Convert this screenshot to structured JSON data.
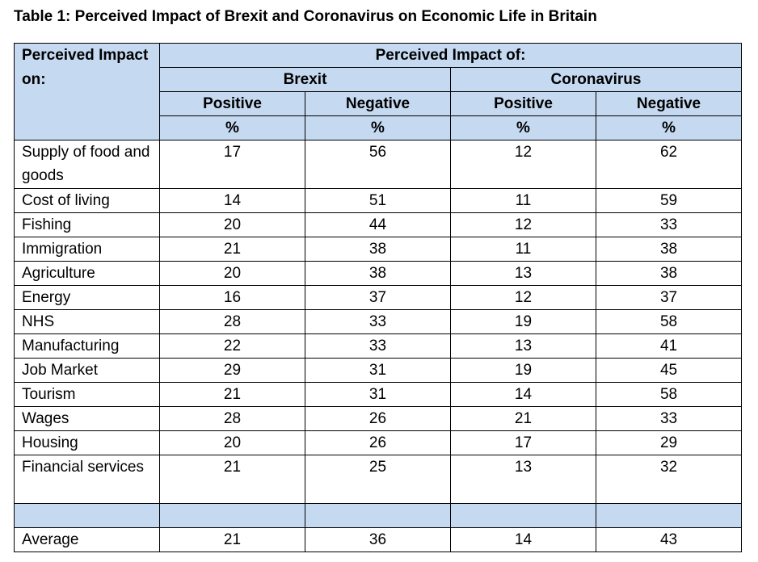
{
  "caption": "Table 1: Perceived Impact of Brexit and Coronavirus on Economic Life in Britain",
  "header": {
    "row_label": "Perceived Impact on:",
    "group_label": "Perceived Impact of:",
    "brexit": "Brexit",
    "coronavirus": "Coronavirus",
    "positive": "Positive",
    "negative": "Negative",
    "unit": "%"
  },
  "rows": [
    {
      "label": "Supply of food and goods",
      "values": [
        "17",
        "56",
        "12",
        "62"
      ]
    },
    {
      "label": "Cost of living",
      "values": [
        "14",
        "51",
        "11",
        "59"
      ]
    },
    {
      "label": "Fishing",
      "values": [
        "20",
        "44",
        "12",
        "33"
      ]
    },
    {
      "label": "Immigration",
      "values": [
        "21",
        "38",
        "11",
        "38"
      ]
    },
    {
      "label": "Agriculture",
      "values": [
        "20",
        "38",
        "13",
        "38"
      ]
    },
    {
      "label": "Energy",
      "values": [
        "16",
        "37",
        "12",
        "37"
      ]
    },
    {
      "label": "NHS",
      "values": [
        "28",
        "33",
        "19",
        "58"
      ]
    },
    {
      "label": "Manufacturing",
      "values": [
        "22",
        "33",
        "13",
        "41"
      ]
    },
    {
      "label": "Job Market",
      "values": [
        "29",
        "31",
        "19",
        "45"
      ]
    },
    {
      "label": "Tourism",
      "values": [
        "21",
        "31",
        "14",
        "58"
      ]
    },
    {
      "label": "Wages",
      "values": [
        "28",
        "26",
        "21",
        "33"
      ]
    },
    {
      "label": "Housing",
      "values": [
        "20",
        "26",
        "17",
        "29"
      ]
    },
    {
      "label": "Financial services",
      "values": [
        "21",
        "25",
        "13",
        "32"
      ]
    }
  ],
  "average": {
    "label": "Average",
    "values": [
      "21",
      "36",
      "14",
      "43"
    ]
  }
}
